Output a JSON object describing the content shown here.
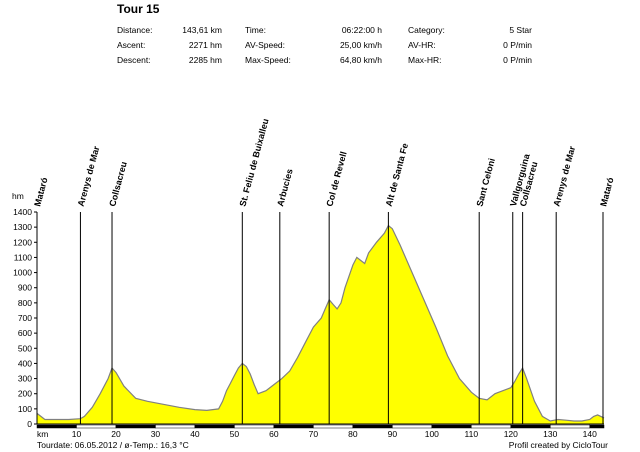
{
  "title": "Tour 15",
  "stats": [
    {
      "label": "Distance:",
      "value": "143,61 km"
    },
    {
      "label": "Time:",
      "value": "06:22:00 h"
    },
    {
      "label": "Category:",
      "value": "5 Star"
    },
    {
      "label": "Ascent:",
      "value": "2271 hm"
    },
    {
      "label": "AV-Speed:",
      "value": "25,00 km/h"
    },
    {
      "label": "AV-HR:",
      "value": "0 P/min"
    },
    {
      "label": "Descent:",
      "value": "2285 hm"
    },
    {
      "label": "Max-Speed:",
      "value": "64,80 km/h"
    },
    {
      "label": "Max-HR:",
      "value": "0 P/min"
    }
  ],
  "footer": {
    "left": "Tourdate: 06.05.2012 / ø-Temp.: 16,3 °C",
    "right": "Profil created by CicloTour"
  },
  "colors": {
    "fill": "#ffff00",
    "outline": "#808080",
    "axis": "#000000"
  },
  "chart_data": {
    "type": "area",
    "xlabel": "km",
    "ylabel": "hm",
    "xlim": [
      0,
      143.61
    ],
    "ylim": [
      0,
      1400
    ],
    "x_ticks": [
      10,
      20,
      30,
      40,
      50,
      60,
      70,
      80,
      90,
      100,
      110,
      120,
      130,
      140
    ],
    "y_ticks": [
      0,
      100,
      200,
      300,
      400,
      500,
      600,
      700,
      800,
      900,
      1000,
      1100,
      1200,
      1300,
      1400
    ],
    "series": [
      {
        "x": [
          0,
          1,
          2,
          4,
          8,
          11,
          12,
          14,
          16,
          18,
          19,
          20,
          22,
          25,
          28,
          32,
          36,
          40,
          43,
          46,
          47,
          48,
          49,
          50,
          51,
          52,
          53,
          54,
          55,
          56,
          58,
          60,
          62,
          64,
          66,
          68,
          70,
          72,
          73,
          74,
          75,
          76,
          77,
          78,
          80,
          81,
          82,
          83,
          84,
          86,
          88,
          89,
          90,
          92,
          95,
          98,
          101,
          104,
          107,
          110,
          112,
          114,
          116,
          118,
          120,
          121,
          122,
          123,
          124,
          126,
          128,
          130,
          131,
          132,
          134,
          136,
          138,
          140,
          141,
          142,
          143.61
        ],
        "values": [
          70,
          50,
          30,
          30,
          30,
          35,
          50,
          110,
          200,
          300,
          370,
          340,
          250,
          170,
          150,
          130,
          110,
          95,
          90,
          100,
          150,
          220,
          270,
          320,
          370,
          400,
          380,
          330,
          260,
          200,
          220,
          260,
          300,
          350,
          440,
          540,
          640,
          700,
          760,
          820,
          790,
          760,
          800,
          900,
          1050,
          1100,
          1080,
          1060,
          1130,
          1200,
          1260,
          1310,
          1290,
          1180,
          1000,
          820,
          640,
          450,
          300,
          210,
          170,
          160,
          200,
          220,
          240,
          280,
          330,
          370,
          300,
          150,
          50,
          20,
          25,
          30,
          25,
          20,
          20,
          30,
          50,
          60,
          40
        ]
      }
    ],
    "waypoints": [
      {
        "km": 0,
        "label": "Mataró"
      },
      {
        "km": 11,
        "label": "Arenys de Mar"
      },
      {
        "km": 19,
        "label": "Collsacreu"
      },
      {
        "km": 52,
        "label": "St. Feliu de Buixalleu"
      },
      {
        "km": 61.5,
        "label": "Arbucies"
      },
      {
        "km": 74,
        "label": "Col de Revell"
      },
      {
        "km": 89,
        "label": "Alt de Santa Fe"
      },
      {
        "km": 112,
        "label": "Sant Celoni"
      },
      {
        "km": 120.5,
        "label": "Vallgorguina"
      },
      {
        "km": 123,
        "label": "Collsacreu"
      },
      {
        "km": 131.5,
        "label": "Arenys de Mar"
      },
      {
        "km": 143.61,
        "label": "Mataró"
      }
    ]
  }
}
